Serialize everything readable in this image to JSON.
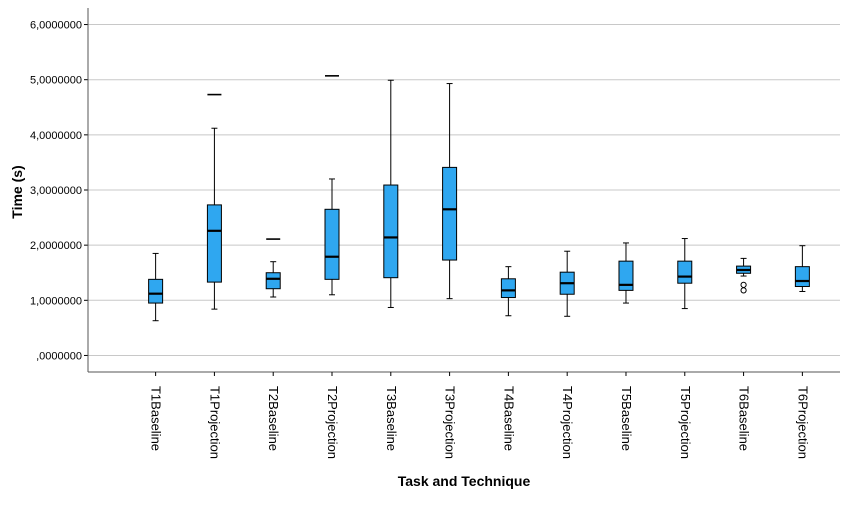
{
  "chart_data": {
    "type": "boxplot",
    "xlabel": "Task and Technique",
    "ylabel": "Time (s)",
    "ylim": [
      -0.3,
      6.3
    ],
    "y_ticks": [
      0,
      1,
      2,
      3,
      4,
      5,
      6
    ],
    "y_tick_labels": [
      ",0000000",
      "1,0000000",
      "2,0000000",
      "3,0000000",
      "4,0000000",
      "5,0000000",
      "6,0000000"
    ],
    "grid": "horizontal",
    "box_color": "#2fa7f0",
    "categories": [
      "T1Baseline",
      "T1Projection",
      "T2Baseline",
      "T2Projection",
      "T3Baseline",
      "T3Projection",
      "T4Baseline",
      "T4Projection",
      "T5Baseline",
      "T5Projection",
      "T6Baseline",
      "T6Projection"
    ],
    "boxes": [
      {
        "min": 0.63,
        "q1": 0.95,
        "median": 1.12,
        "q3": 1.38,
        "max": 1.85,
        "outliers": []
      },
      {
        "min": 0.84,
        "q1": 1.33,
        "median": 2.26,
        "q3": 2.73,
        "max": 4.12,
        "outliers": [
          4.73
        ]
      },
      {
        "min": 1.06,
        "q1": 1.21,
        "median": 1.39,
        "q3": 1.5,
        "max": 1.7,
        "outliers": [
          2.11
        ]
      },
      {
        "min": 1.1,
        "q1": 1.38,
        "median": 1.79,
        "q3": 2.65,
        "max": 3.2,
        "outliers": [
          5.07
        ]
      },
      {
        "min": 0.87,
        "q1": 1.41,
        "median": 2.14,
        "q3": 3.09,
        "max": 4.99,
        "outliers": []
      },
      {
        "min": 1.03,
        "q1": 1.73,
        "median": 2.65,
        "q3": 3.41,
        "max": 4.93,
        "outliers": []
      },
      {
        "min": 0.72,
        "q1": 1.05,
        "median": 1.18,
        "q3": 1.39,
        "max": 1.61,
        "outliers": []
      },
      {
        "min": 0.71,
        "q1": 1.11,
        "median": 1.31,
        "q3": 1.51,
        "max": 1.89,
        "outliers": []
      },
      {
        "min": 0.95,
        "q1": 1.18,
        "median": 1.28,
        "q3": 1.71,
        "max": 2.04,
        "outliers": []
      },
      {
        "min": 0.85,
        "q1": 1.31,
        "median": 1.43,
        "q3": 1.71,
        "max": 2.12,
        "outliers": []
      },
      {
        "min": 1.44,
        "q1": 1.49,
        "median": 1.55,
        "q3": 1.62,
        "max": 1.76,
        "outliers": [
          1.28,
          1.18
        ]
      },
      {
        "min": 1.16,
        "q1": 1.25,
        "median": 1.35,
        "q3": 1.61,
        "max": 1.99,
        "outliers": []
      }
    ]
  }
}
